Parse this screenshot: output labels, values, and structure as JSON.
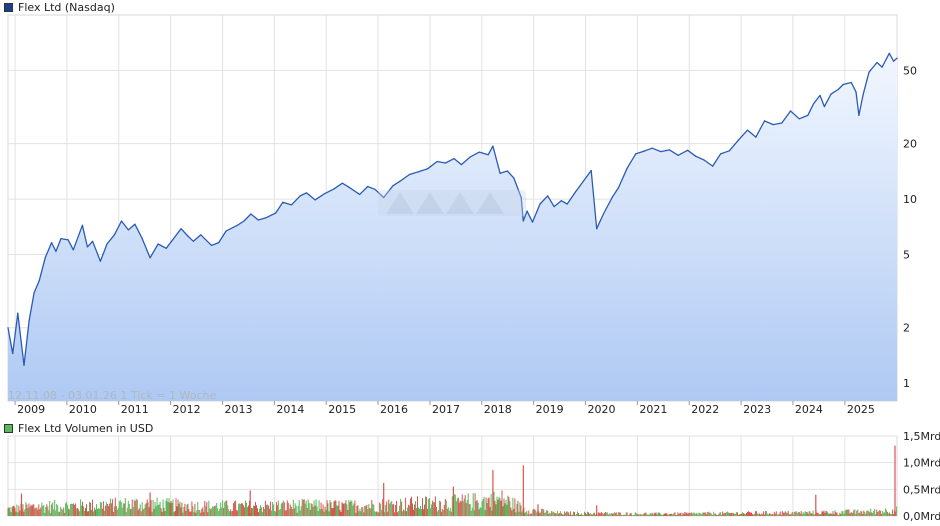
{
  "legend": {
    "price_label": "Flex Ltd (Nasdaq)",
    "price_color": "#1a3f8f",
    "volume_label": "Flex Ltd Volumen in USD",
    "volume_color": "#5cb85c"
  },
  "info_text": "12.11.08 - 03.01.26   1 Tick = 1 Woche",
  "chart_data": [
    {
      "type": "area",
      "title": "Flex Ltd (Nasdaq)",
      "scale": "log",
      "ylim": [
        0.8,
        100
      ],
      "y_ticks": [
        {
          "value": 1,
          "label": "1"
        },
        {
          "value": 2,
          "label": "2"
        },
        {
          "value": 5,
          "label": "5"
        },
        {
          "value": 10,
          "label": "10"
        },
        {
          "value": 20,
          "label": "20"
        },
        {
          "value": 50,
          "label": "50"
        }
      ],
      "x_range": [
        "2008-11-12",
        "2026-01-03"
      ],
      "x_ticks": [
        "2009",
        "2010",
        "2011",
        "2012",
        "2013",
        "2014",
        "2015",
        "2016",
        "2017",
        "2018",
        "2019",
        "2020",
        "2021",
        "2022",
        "2023",
        "2024",
        "2025"
      ],
      "grid": true,
      "line_color": "#2a5bb5",
      "fill_top": "#f2f7ff",
      "fill_bottom": "#aec9f3",
      "points": [
        [
          "2008-11-12",
          2.0
        ],
        [
          "2008-12-15",
          1.45
        ],
        [
          "2009-01-20",
          2.4
        ],
        [
          "2009-03-05",
          1.25
        ],
        [
          "2009-04-10",
          2.2
        ],
        [
          "2009-05-15",
          3.1
        ],
        [
          "2009-06-20",
          3.6
        ],
        [
          "2009-08-01",
          4.8
        ],
        [
          "2009-09-15",
          5.8
        ],
        [
          "2009-10-15",
          5.2
        ],
        [
          "2009-11-20",
          6.1
        ],
        [
          "2010-01-10",
          6.0
        ],
        [
          "2010-02-15",
          5.3
        ],
        [
          "2010-04-20",
          7.2
        ],
        [
          "2010-05-25",
          5.5
        ],
        [
          "2010-07-01",
          5.9
        ],
        [
          "2010-08-25",
          4.6
        ],
        [
          "2010-10-10",
          5.7
        ],
        [
          "2010-12-01",
          6.4
        ],
        [
          "2011-01-20",
          7.6
        ],
        [
          "2011-03-10",
          6.8
        ],
        [
          "2011-04-25",
          7.3
        ],
        [
          "2011-06-15",
          6.1
        ],
        [
          "2011-08-10",
          4.8
        ],
        [
          "2011-10-05",
          5.7
        ],
        [
          "2011-12-01",
          5.4
        ],
        [
          "2012-01-15",
          6.0
        ],
        [
          "2012-03-15",
          6.9
        ],
        [
          "2012-05-01",
          6.3
        ],
        [
          "2012-06-10",
          5.9
        ],
        [
          "2012-08-01",
          6.4
        ],
        [
          "2012-10-15",
          5.6
        ],
        [
          "2012-12-05",
          5.8
        ],
        [
          "2013-01-25",
          6.7
        ],
        [
          "2013-04-15",
          7.2
        ],
        [
          "2013-06-01",
          7.6
        ],
        [
          "2013-07-20",
          8.3
        ],
        [
          "2013-09-10",
          7.7
        ],
        [
          "2013-11-01",
          7.9
        ],
        [
          "2014-01-10",
          8.4
        ],
        [
          "2014-03-01",
          9.6
        ],
        [
          "2014-05-01",
          9.3
        ],
        [
          "2014-07-01",
          10.4
        ],
        [
          "2014-08-15",
          10.8
        ],
        [
          "2014-10-15",
          9.9
        ],
        [
          "2014-12-20",
          10.7
        ],
        [
          "2015-02-20",
          11.3
        ],
        [
          "2015-04-25",
          12.2
        ],
        [
          "2015-06-10",
          11.6
        ],
        [
          "2015-08-25",
          10.6
        ],
        [
          "2015-10-20",
          11.7
        ],
        [
          "2015-12-10",
          11.3
        ],
        [
          "2016-02-10",
          10.2
        ],
        [
          "2016-04-15",
          11.8
        ],
        [
          "2016-06-10",
          12.6
        ],
        [
          "2016-08-10",
          13.6
        ],
        [
          "2016-10-15",
          14.1
        ],
        [
          "2016-12-15",
          14.6
        ],
        [
          "2017-02-20",
          16.0
        ],
        [
          "2017-04-20",
          15.7
        ],
        [
          "2017-06-20",
          16.6
        ],
        [
          "2017-08-10",
          15.4
        ],
        [
          "2017-10-10",
          16.9
        ],
        [
          "2017-12-15",
          18.0
        ],
        [
          "2018-02-15",
          17.4
        ],
        [
          "2018-03-20",
          19.4
        ],
        [
          "2018-05-10",
          13.8
        ],
        [
          "2018-06-30",
          14.2
        ],
        [
          "2018-08-15",
          13.0
        ],
        [
          "2018-10-05",
          10.2
        ],
        [
          "2018-10-20",
          7.6
        ],
        [
          "2018-11-15",
          8.6
        ],
        [
          "2018-12-24",
          7.5
        ],
        [
          "2019-02-15",
          9.4
        ],
        [
          "2019-04-10",
          10.4
        ],
        [
          "2019-05-25",
          9.1
        ],
        [
          "2019-07-15",
          9.8
        ],
        [
          "2019-08-25",
          9.4
        ],
        [
          "2019-10-25",
          11.0
        ],
        [
          "2019-12-20",
          12.6
        ],
        [
          "2020-02-10",
          14.3
        ],
        [
          "2020-03-20",
          6.9
        ],
        [
          "2020-05-10",
          8.4
        ],
        [
          "2020-07-10",
          10.3
        ],
        [
          "2020-08-20",
          11.5
        ],
        [
          "2020-10-20",
          14.7
        ],
        [
          "2020-12-20",
          17.6
        ],
        [
          "2021-02-15",
          18.2
        ],
        [
          "2021-04-15",
          18.9
        ],
        [
          "2021-06-15",
          18.1
        ],
        [
          "2021-08-15",
          18.5
        ],
        [
          "2021-10-15",
          17.3
        ],
        [
          "2021-12-20",
          18.4
        ],
        [
          "2022-02-15",
          17.1
        ],
        [
          "2022-04-15",
          16.3
        ],
        [
          "2022-06-15",
          15.1
        ],
        [
          "2022-08-10",
          17.6
        ],
        [
          "2022-10-10",
          18.3
        ],
        [
          "2022-12-15",
          21.0
        ],
        [
          "2023-02-15",
          23.7
        ],
        [
          "2023-04-15",
          21.7
        ],
        [
          "2023-06-15",
          26.6
        ],
        [
          "2023-08-15",
          25.4
        ],
        [
          "2023-10-15",
          25.9
        ],
        [
          "2023-12-15",
          30.1
        ],
        [
          "2024-02-15",
          27.3
        ],
        [
          "2024-04-15",
          28.5
        ],
        [
          "2024-05-25",
          32.9
        ],
        [
          "2024-07-10",
          36.6
        ],
        [
          "2024-08-10",
          31.8
        ],
        [
          "2024-09-25",
          37.2
        ],
        [
          "2024-11-15",
          39.4
        ],
        [
          "2024-12-20",
          41.9
        ],
        [
          "2025-02-15",
          43.0
        ],
        [
          "2025-03-20",
          38.2
        ],
        [
          "2025-04-10",
          28.5
        ],
        [
          "2025-05-10",
          37.1
        ],
        [
          "2025-06-20",
          48.9
        ],
        [
          "2025-08-15",
          55.2
        ],
        [
          "2025-09-20",
          52.1
        ],
        [
          "2025-11-10",
          61.9
        ],
        [
          "2025-12-10",
          56.1
        ],
        [
          "2026-01-03",
          58.3
        ]
      ]
    },
    {
      "type": "bar",
      "title": "Flex Ltd Volumen in USD",
      "unit": "Mrd",
      "ylim": [
        0,
        1.5
      ],
      "y_ticks": [
        {
          "value": 0.0,
          "label": "0,0Mrd"
        },
        {
          "value": 0.5,
          "label": "0,5Mrd"
        },
        {
          "value": 1.0,
          "label": "1,0Mrd"
        },
        {
          "value": 1.5,
          "label": "1,5Mrd"
        }
      ],
      "up_color": "#5cb85c",
      "down_color": "#d9534f",
      "volume_profile": [
        [
          "2008-11-12",
          0.16
        ],
        [
          "2009-06-01",
          0.22
        ],
        [
          "2010-06-01",
          0.24
        ],
        [
          "2011-06-01",
          0.28
        ],
        [
          "2012-06-01",
          0.23
        ],
        [
          "2013-06-01",
          0.22
        ],
        [
          "2014-06-01",
          0.24
        ],
        [
          "2015-06-01",
          0.23
        ],
        [
          "2016-06-01",
          0.27
        ],
        [
          "2017-06-01",
          0.3
        ],
        [
          "2018-01-01",
          0.34
        ],
        [
          "2018-06-01",
          0.38
        ],
        [
          "2018-11-01",
          0.15
        ],
        [
          "2019-06-01",
          0.07
        ],
        [
          "2020-06-01",
          0.06
        ],
        [
          "2021-06-01",
          0.05
        ],
        [
          "2022-06-01",
          0.06
        ],
        [
          "2023-06-01",
          0.07
        ],
        [
          "2024-06-01",
          0.08
        ],
        [
          "2025-06-01",
          0.1
        ],
        [
          "2026-01-03",
          0.14
        ]
      ],
      "spikes": [
        [
          "2009-02-15",
          0.42
        ],
        [
          "2011-08-10",
          0.44
        ],
        [
          "2013-07-15",
          0.48
        ],
        [
          "2016-02-10",
          0.62
        ],
        [
          "2017-06-15",
          0.55
        ],
        [
          "2018-03-20",
          0.86
        ],
        [
          "2018-10-20",
          0.95
        ],
        [
          "2019-02-01",
          0.22
        ],
        [
          "2020-03-20",
          0.2
        ],
        [
          "2024-06-10",
          0.4
        ],
        [
          "2025-12-20",
          1.32
        ]
      ]
    }
  ]
}
